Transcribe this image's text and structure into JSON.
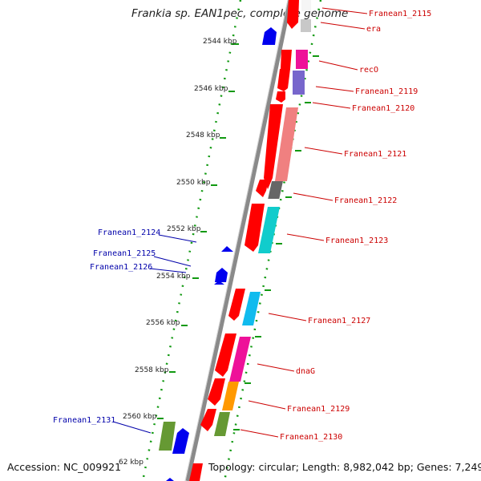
{
  "title": "Frankia sp. EAN1pec, complete genome",
  "footer": {
    "accession": "Accession: NC_009921",
    "stats": "Topology: circular; Length: 8,982,042 bp; Genes: 7,249"
  },
  "colors": {
    "forward_strand": "#ff0000",
    "reverse_strand": "#0000ff",
    "right_label": "#cc0000",
    "left_label": "#0000aa",
    "tick": "#119911",
    "backbone": "#888888"
  },
  "ticks": [
    "2544 kbp",
    "2546 kbp",
    "2548 kbp",
    "2550 kbp",
    "2552 kbp",
    "2554 kbp",
    "2556 kbp",
    "2558 kbp",
    "2560 kbp",
    "62 kbp"
  ],
  "right_labels": [
    "Franean1_2115",
    "era",
    "recO",
    "Franean1_2119",
    "Franean1_2120",
    "Franean1_2121",
    "Franean1_2122",
    "Franean1_2123",
    "Franean1_2127",
    "dnaG",
    "Franean1_2129",
    "Franean1_2130"
  ],
  "left_labels": [
    "Franean1_2124",
    "Franean1_2125",
    "Franean1_2126",
    "Franean1_2131"
  ]
}
